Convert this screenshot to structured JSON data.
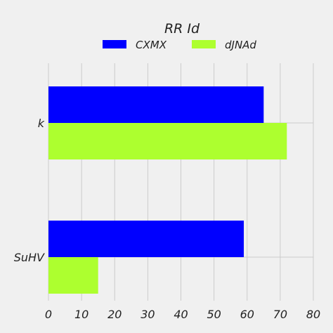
{
  "chart_data": {
    "type": "bar",
    "orientation": "horizontal",
    "title": "RR Id",
    "xlabel": "",
    "ylabel": "",
    "categories": [
      "k",
      "SuHV"
    ],
    "series": [
      {
        "name": "CXMX",
        "values": [
          65,
          59
        ],
        "color": "#0000ff"
      },
      {
        "name": "dJNAd",
        "values": [
          72,
          15
        ],
        "color": "#adff2f"
      }
    ],
    "xlim": [
      0,
      80
    ],
    "xticks": [
      0,
      10,
      20,
      30,
      40,
      50,
      60,
      70,
      80
    ],
    "grid": true,
    "legend_position": "top-center"
  },
  "colors": {
    "background": "#f0f0f0",
    "grid": "#cbcbcb",
    "text": "#222222"
  }
}
